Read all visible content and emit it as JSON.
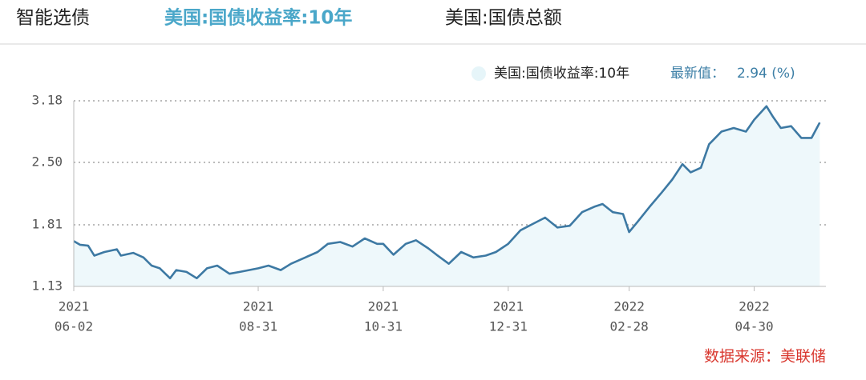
{
  "tabs": [
    "智能选债",
    "美国:国债收益率:10年",
    "美国:国债总额"
  ],
  "chart_data": {
    "type": "line",
    "legend": {
      "latest_label": "最新值：",
      "latest_value": "2.94 (%)"
    },
    "source": "数据来源：美联储",
    "x": [
      "2021-06-02",
      "2021-06-05",
      "2021-06-09",
      "2021-06-12",
      "2021-06-17",
      "2021-06-23",
      "2021-06-25",
      "2021-07-01",
      "2021-07-06",
      "2021-07-10",
      "2021-07-14",
      "2021-07-19",
      "2021-07-22",
      "2021-07-27",
      "2021-08-01",
      "2021-08-06",
      "2021-08-11",
      "2021-08-17",
      "2021-08-22",
      "2021-08-31",
      "2021-09-05",
      "2021-09-11",
      "2021-09-16",
      "2021-09-23",
      "2021-09-29",
      "2021-10-04",
      "2021-10-10",
      "2021-10-16",
      "2021-10-22",
      "2021-10-28",
      "2021-10-31",
      "2021-11-05",
      "2021-11-11",
      "2021-11-16",
      "2021-11-22",
      "2021-11-26",
      "2021-12-02",
      "2021-12-08",
      "2021-12-14",
      "2021-12-20",
      "2021-12-25",
      "2021-12-31",
      "2022-01-06",
      "2022-01-12",
      "2022-01-18",
      "2022-01-24",
      "2022-01-30",
      "2022-02-05",
      "2022-02-11",
      "2022-02-15",
      "2022-02-20",
      "2022-02-25",
      "2022-02-28",
      "2022-03-04",
      "2022-03-10",
      "2022-03-16",
      "2022-03-21",
      "2022-03-26",
      "2022-03-30",
      "2022-04-04",
      "2022-04-08",
      "2022-04-14",
      "2022-04-20",
      "2022-04-26",
      "2022-04-30",
      "2022-05-06",
      "2022-05-09",
      "2022-05-13",
      "2022-05-18",
      "2022-05-23",
      "2022-05-28",
      "2022-06-01"
    ],
    "series": [
      {
        "name": "美国:国债收益率:10年",
        "color": "#3d79a3",
        "values": [
          1.63,
          1.59,
          1.58,
          1.47,
          1.51,
          1.54,
          1.47,
          1.5,
          1.45,
          1.36,
          1.33,
          1.22,
          1.31,
          1.29,
          1.22,
          1.33,
          1.36,
          1.27,
          1.29,
          1.33,
          1.36,
          1.31,
          1.38,
          1.45,
          1.51,
          1.6,
          1.62,
          1.57,
          1.66,
          1.6,
          1.6,
          1.48,
          1.6,
          1.64,
          1.55,
          1.48,
          1.38,
          1.51,
          1.45,
          1.47,
          1.51,
          1.6,
          1.75,
          1.82,
          1.89,
          1.78,
          1.8,
          1.95,
          2.01,
          2.04,
          1.95,
          1.93,
          1.73,
          1.84,
          2.01,
          2.17,
          2.31,
          2.48,
          2.39,
          2.44,
          2.7,
          2.84,
          2.88,
          2.84,
          2.97,
          3.12,
          3.01,
          2.88,
          2.9,
          2.77,
          2.77,
          2.94
        ]
      }
    ],
    "xlim": [
      "2021-06-02",
      "2022-06-04"
    ],
    "xticks": [
      {
        "value": "2021-06-02",
        "label": [
          "2021",
          "06-02"
        ]
      },
      {
        "value": "2021-08-31",
        "label": [
          "2021",
          "08-31"
        ]
      },
      {
        "value": "2021-10-31",
        "label": [
          "2021",
          "10-31"
        ]
      },
      {
        "value": "2021-12-31",
        "label": [
          "2021",
          "12-31"
        ]
      },
      {
        "value": "2022-02-28",
        "label": [
          "2022",
          "02-28"
        ]
      },
      {
        "value": "2022-04-30",
        "label": [
          "2022",
          "04-30"
        ]
      }
    ],
    "ylim": [
      1.13,
      3.18
    ],
    "yticks": [
      1.13,
      1.81,
      {
        "value": 2.5,
        "label": "2.50"
      },
      3.18
    ],
    "grid": true,
    "area_color": "#eef8fb"
  }
}
